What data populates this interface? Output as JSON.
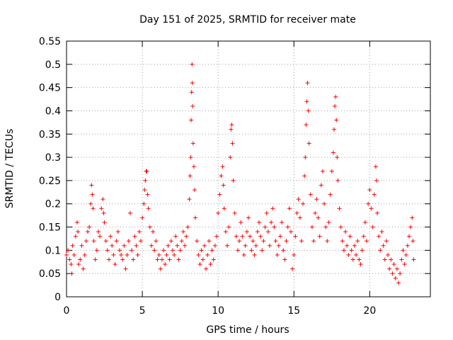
{
  "chart_data": {
    "type": "scatter",
    "title": "Day 151 of 2025, SRMTID for receiver mate",
    "xlabel": "GPS time / hours",
    "ylabel": "SRMTID / TECUs",
    "xlim": [
      0,
      24
    ],
    "ylim": [
      0,
      0.55
    ],
    "xticks": [
      0,
      5,
      10,
      15,
      20
    ],
    "xtick_labels": [
      "0",
      "5",
      "10",
      "15",
      "20"
    ],
    "yticks": [
      0,
      0.05,
      0.1,
      0.15,
      0.2,
      0.25,
      0.3,
      0.35,
      0.4,
      0.45,
      0.5,
      0.55
    ],
    "ytick_labels": [
      "0",
      "0.05",
      "0.1",
      "0.15",
      "0.2",
      "0.25",
      "0.3",
      "0.35",
      "0.4",
      "0.45",
      "0.5",
      "0.55"
    ],
    "grid": true,
    "marker": "plus",
    "color": "#ff0000",
    "series": [
      {
        "name": "SRMTID",
        "points": [
          [
            0.0,
            0.09
          ],
          [
            0.1,
            0.1
          ],
          [
            0.2,
            0.08
          ],
          [
            0.3,
            0.07
          ],
          [
            0.35,
            0.05
          ],
          [
            0.4,
            0.11
          ],
          [
            0.5,
            0.09
          ],
          [
            0.6,
            0.13
          ],
          [
            0.7,
            0.16
          ],
          [
            0.75,
            0.14
          ],
          [
            0.8,
            0.07
          ],
          [
            0.9,
            0.08
          ],
          [
            1.0,
            0.11
          ],
          [
            1.1,
            0.06
          ],
          [
            1.2,
            0.09
          ],
          [
            1.3,
            0.12
          ],
          [
            1.4,
            0.14
          ],
          [
            1.5,
            0.15
          ],
          [
            1.6,
            0.2
          ],
          [
            1.65,
            0.24
          ],
          [
            1.7,
            0.22
          ],
          [
            1.75,
            0.19
          ],
          [
            1.8,
            0.12
          ],
          [
            1.9,
            0.08
          ],
          [
            2.0,
            0.1
          ],
          [
            2.1,
            0.14
          ],
          [
            2.2,
            0.13
          ],
          [
            2.3,
            0.19
          ],
          [
            2.4,
            0.21
          ],
          [
            2.45,
            0.18
          ],
          [
            2.5,
            0.16
          ],
          [
            2.6,
            0.12
          ],
          [
            2.7,
            0.1
          ],
          [
            2.8,
            0.08
          ],
          [
            2.9,
            0.13
          ],
          [
            3.0,
            0.11
          ],
          [
            3.1,
            0.09
          ],
          [
            3.2,
            0.07
          ],
          [
            3.3,
            0.12
          ],
          [
            3.4,
            0.14
          ],
          [
            3.5,
            0.1
          ],
          [
            3.6,
            0.09
          ],
          [
            3.7,
            0.08
          ],
          [
            3.8,
            0.11
          ],
          [
            3.9,
            0.06
          ],
          [
            4.0,
            0.09
          ],
          [
            4.1,
            0.12
          ],
          [
            4.2,
            0.18
          ],
          [
            4.3,
            0.1
          ],
          [
            4.4,
            0.08
          ],
          [
            4.5,
            0.13
          ],
          [
            4.6,
            0.11
          ],
          [
            4.7,
            0.09
          ],
          [
            4.8,
            0.14
          ],
          [
            4.9,
            0.12
          ],
          [
            5.0,
            0.17
          ],
          [
            5.1,
            0.2
          ],
          [
            5.15,
            0.23
          ],
          [
            5.2,
            0.25
          ],
          [
            5.25,
            0.27
          ],
          [
            5.3,
            0.27
          ],
          [
            5.35,
            0.22
          ],
          [
            5.4,
            0.19
          ],
          [
            5.5,
            0.15
          ],
          [
            5.6,
            0.11
          ],
          [
            5.7,
            0.14
          ],
          [
            5.8,
            0.1
          ],
          [
            5.9,
            0.12
          ],
          [
            6.0,
            0.08
          ],
          [
            6.1,
            0.09
          ],
          [
            6.2,
            0.06
          ],
          [
            6.3,
            0.08
          ],
          [
            6.4,
            0.1
          ],
          [
            6.5,
            0.07
          ],
          [
            6.6,
            0.09
          ],
          [
            6.7,
            0.11
          ],
          [
            6.8,
            0.08
          ],
          [
            6.9,
            0.12
          ],
          [
            7.0,
            0.1
          ],
          [
            7.1,
            0.09
          ],
          [
            7.2,
            0.13
          ],
          [
            7.3,
            0.11
          ],
          [
            7.4,
            0.08
          ],
          [
            7.5,
            0.1
          ],
          [
            7.6,
            0.12
          ],
          [
            7.7,
            0.14
          ],
          [
            7.8,
            0.11
          ],
          [
            7.9,
            0.13
          ],
          [
            8.0,
            0.15
          ],
          [
            8.1,
            0.21
          ],
          [
            8.15,
            0.26
          ],
          [
            8.2,
            0.3
          ],
          [
            8.22,
            0.38
          ],
          [
            8.25,
            0.44
          ],
          [
            8.28,
            0.5
          ],
          [
            8.3,
            0.46
          ],
          [
            8.32,
            0.41
          ],
          [
            8.35,
            0.33
          ],
          [
            8.4,
            0.28
          ],
          [
            8.45,
            0.23
          ],
          [
            8.5,
            0.17
          ],
          [
            8.6,
            0.12
          ],
          [
            8.7,
            0.09
          ],
          [
            8.8,
            0.07
          ],
          [
            8.9,
            0.1
          ],
          [
            9.0,
            0.08
          ],
          [
            9.1,
            0.11
          ],
          [
            9.2,
            0.06
          ],
          [
            9.3,
            0.09
          ],
          [
            9.4,
            0.12
          ],
          [
            9.5,
            0.07
          ],
          [
            9.6,
            0.1
          ],
          [
            9.7,
            0.08
          ],
          [
            9.8,
            0.11
          ],
          [
            9.9,
            0.13
          ],
          [
            10.0,
            0.18
          ],
          [
            10.1,
            0.22
          ],
          [
            10.2,
            0.26
          ],
          [
            10.3,
            0.28
          ],
          [
            10.35,
            0.24
          ],
          [
            10.4,
            0.19
          ],
          [
            10.5,
            0.14
          ],
          [
            10.6,
            0.11
          ],
          [
            10.7,
            0.15
          ],
          [
            10.8,
            0.3
          ],
          [
            10.85,
            0.36
          ],
          [
            10.9,
            0.37
          ],
          [
            10.95,
            0.33
          ],
          [
            11.0,
            0.25
          ],
          [
            11.1,
            0.18
          ],
          [
            11.2,
            0.13
          ],
          [
            11.3,
            0.1
          ],
          [
            11.4,
            0.12
          ],
          [
            11.5,
            0.16
          ],
          [
            11.6,
            0.13
          ],
          [
            11.7,
            0.09
          ],
          [
            11.8,
            0.11
          ],
          [
            11.9,
            0.14
          ],
          [
            12.0,
            0.17
          ],
          [
            12.1,
            0.13
          ],
          [
            12.2,
            0.1
          ],
          [
            12.3,
            0.12
          ],
          [
            12.4,
            0.09
          ],
          [
            12.5,
            0.11
          ],
          [
            12.6,
            0.14
          ],
          [
            12.7,
            0.16
          ],
          [
            12.8,
            0.13
          ],
          [
            12.9,
            0.1
          ],
          [
            13.0,
            0.12
          ],
          [
            13.1,
            0.15
          ],
          [
            13.2,
            0.18
          ],
          [
            13.3,
            0.14
          ],
          [
            13.4,
            0.11
          ],
          [
            13.5,
            0.16
          ],
          [
            13.6,
            0.19
          ],
          [
            13.7,
            0.15
          ],
          [
            13.8,
            0.12
          ],
          [
            13.9,
            0.09
          ],
          [
            14.0,
            0.11
          ],
          [
            14.1,
            0.13
          ],
          [
            14.2,
            0.16
          ],
          [
            14.3,
            0.1
          ],
          [
            14.4,
            0.08
          ],
          [
            14.5,
            0.12
          ],
          [
            14.6,
            0.15
          ],
          [
            14.7,
            0.19
          ],
          [
            14.8,
            0.14
          ],
          [
            14.9,
            0.06
          ],
          [
            15.0,
            0.09
          ],
          [
            15.1,
            0.13
          ],
          [
            15.2,
            0.18
          ],
          [
            15.3,
            0.21
          ],
          [
            15.4,
            0.17
          ],
          [
            15.5,
            0.12
          ],
          [
            15.6,
            0.2
          ],
          [
            15.7,
            0.26
          ],
          [
            15.75,
            0.3
          ],
          [
            15.8,
            0.37
          ],
          [
            15.85,
            0.42
          ],
          [
            15.9,
            0.46
          ],
          [
            15.95,
            0.4
          ],
          [
            16.0,
            0.33
          ],
          [
            16.1,
            0.22
          ],
          [
            16.2,
            0.15
          ],
          [
            16.3,
            0.12
          ],
          [
            16.4,
            0.18
          ],
          [
            16.5,
            0.21
          ],
          [
            16.6,
            0.17
          ],
          [
            16.7,
            0.13
          ],
          [
            16.8,
            0.24
          ],
          [
            16.9,
            0.27
          ],
          [
            17.0,
            0.2
          ],
          [
            17.1,
            0.15
          ],
          [
            17.2,
            0.12
          ],
          [
            17.3,
            0.16
          ],
          [
            17.4,
            0.22
          ],
          [
            17.5,
            0.27
          ],
          [
            17.6,
            0.31
          ],
          [
            17.65,
            0.36
          ],
          [
            17.7,
            0.41
          ],
          [
            17.75,
            0.43
          ],
          [
            17.8,
            0.38
          ],
          [
            17.85,
            0.3
          ],
          [
            17.9,
            0.25
          ],
          [
            18.0,
            0.19
          ],
          [
            18.1,
            0.15
          ],
          [
            18.2,
            0.12
          ],
          [
            18.3,
            0.1
          ],
          [
            18.4,
            0.14
          ],
          [
            18.5,
            0.11
          ],
          [
            18.6,
            0.09
          ],
          [
            18.7,
            0.13
          ],
          [
            18.8,
            0.1
          ],
          [
            18.9,
            0.08
          ],
          [
            19.0,
            0.11
          ],
          [
            19.1,
            0.09
          ],
          [
            19.2,
            0.12
          ],
          [
            19.3,
            0.08
          ],
          [
            19.4,
            0.07
          ],
          [
            19.5,
            0.1
          ],
          [
            19.6,
            0.13
          ],
          [
            19.7,
            0.16
          ],
          [
            19.8,
            0.12
          ],
          [
            19.9,
            0.2
          ],
          [
            20.0,
            0.23
          ],
          [
            20.1,
            0.19
          ],
          [
            20.2,
            0.15
          ],
          [
            20.3,
            0.22
          ],
          [
            20.4,
            0.28
          ],
          [
            20.45,
            0.25
          ],
          [
            20.5,
            0.18
          ],
          [
            20.6,
            0.13
          ],
          [
            20.7,
            0.1
          ],
          [
            20.8,
            0.14
          ],
          [
            20.9,
            0.11
          ],
          [
            21.0,
            0.08
          ],
          [
            21.1,
            0.12
          ],
          [
            21.2,
            0.09
          ],
          [
            21.3,
            0.06
          ],
          [
            21.4,
            0.08
          ],
          [
            21.5,
            0.05
          ],
          [
            21.6,
            0.07
          ],
          [
            21.7,
            0.04
          ],
          [
            21.8,
            0.06
          ],
          [
            21.9,
            0.03
          ],
          [
            22.0,
            0.05
          ],
          [
            22.1,
            0.08
          ],
          [
            22.2,
            0.1
          ],
          [
            22.3,
            0.07
          ],
          [
            22.4,
            0.09
          ],
          [
            22.5,
            0.11
          ],
          [
            22.6,
            0.13
          ],
          [
            22.7,
            0.15
          ],
          [
            22.8,
            0.17
          ],
          [
            22.85,
            0.12
          ],
          [
            22.9,
            0.08
          ]
        ]
      }
    ]
  }
}
